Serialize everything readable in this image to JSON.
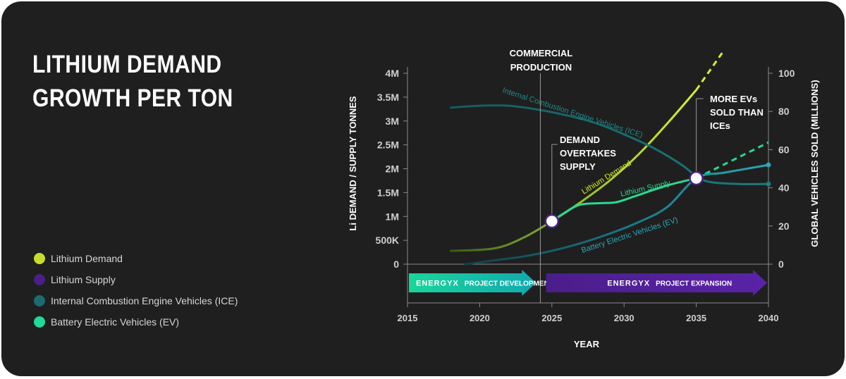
{
  "title_line1": "LITHIUM DEMAND",
  "title_line2": "GROWTH PER TON",
  "legend": [
    {
      "label": "Lithium Demand",
      "color": "#c8dc2a"
    },
    {
      "label": "Lithium Supply",
      "color": "#4b1f86"
    },
    {
      "label": "Internal Combustion Engine Vehicles (ICE)",
      "color": "#1b6b70"
    },
    {
      "label": "Battery Electric Vehicles (EV)",
      "color": "#21d99a"
    }
  ],
  "chart_data": {
    "type": "line",
    "xlabel": "YEAR",
    "ylabel_left": "Li DEMAND / SUPPLY TONNES",
    "ylabel_right": "GLOBAL VEHICLES SOLD (MILLIONS)",
    "xlim": [
      2015,
      2040
    ],
    "ylim_left": [
      0,
      4000000
    ],
    "ylim_right": [
      0,
      100
    ],
    "x_ticks": [
      "2015",
      "2020",
      "2025",
      "2030",
      "2035",
      "2040"
    ],
    "y_left_ticks": [
      "0",
      "500K",
      "1M",
      "1.5M",
      "2M",
      "2.5M",
      "3M",
      "3.5M",
      "4M"
    ],
    "y_right_ticks": [
      "0",
      "20",
      "40",
      "60",
      "80",
      "100"
    ],
    "series": [
      {
        "name": "Lithium Demand",
        "axis": "left",
        "x": [
          2018,
          2021,
          2023,
          2025,
          2027,
          2029,
          2031,
          2033,
          2035.0
        ],
        "y": [
          280000,
          330000,
          550000,
          900000,
          1300000,
          1750000,
          2300000,
          2950000,
          3650000
        ],
        "projected": {
          "x": [
            2035.0,
            2036.8
          ],
          "y": [
            3650000,
            4430000
          ]
        }
      },
      {
        "name": "Lithium Supply",
        "axis": "left",
        "x": [
          2025,
          2026,
          2027,
          2028.5,
          2029.5,
          2031,
          2033,
          2035
        ],
        "y": [
          900000,
          1100000,
          1250000,
          1280000,
          1300000,
          1450000,
          1650000,
          1800000
        ],
        "projected": {
          "x": [
            2035,
            2037,
            2040
          ],
          "y": [
            1800000,
            2100000,
            2550000
          ]
        }
      },
      {
        "name": "Internal Combustion Engine Vehicles (ICE)",
        "axis": "right",
        "x": [
          2018,
          2020,
          2022,
          2024,
          2026,
          2028,
          2030,
          2032,
          2034,
          2035,
          2036,
          2038,
          2040
        ],
        "y": [
          82,
          83,
          83,
          81,
          78,
          74,
          68,
          61,
          52,
          46,
          43,
          42,
          42
        ]
      },
      {
        "name": "Battery Electric Vehicles (EV)",
        "axis": "right",
        "x": [
          2019,
          2021,
          2023,
          2025,
          2027,
          2029,
          2031,
          2033,
          2035,
          2037,
          2040
        ],
        "y": [
          0,
          2,
          4,
          7,
          11,
          16,
          22,
          30,
          45,
          48,
          52
        ]
      }
    ],
    "curve_labels": [
      "Internal Combustion Engine Vehicles (ICE)",
      "Lithium Demand",
      "Lithium Supply",
      "Battery Electric Vehicles (EV)"
    ],
    "annotations": {
      "commercial_line1": "COMMERCIAL",
      "commercial_line2": "PRODUCTION",
      "commercial_x": 2024.2,
      "overtake_line1": "DEMAND",
      "overtake_line2": "OVERTAKES",
      "overtake_line3": "SUPPLY",
      "overtake_point": {
        "x": 2025,
        "y": 900000
      },
      "ev_line1": "MORE EVs",
      "ev_line2": "SOLD THAN",
      "ev_line3": "ICEs",
      "ev_point": {
        "x": 2035,
        "y": 1800000
      }
    },
    "bars": [
      {
        "brand": "ENERGYX",
        "label": "PROJECT DEVELOPMENT",
        "from": 2015,
        "to": 2024
      },
      {
        "brand": "ENERGYX",
        "label": "PROJECT EXPANSION",
        "from": 2024.5,
        "to": 2040
      }
    ]
  }
}
